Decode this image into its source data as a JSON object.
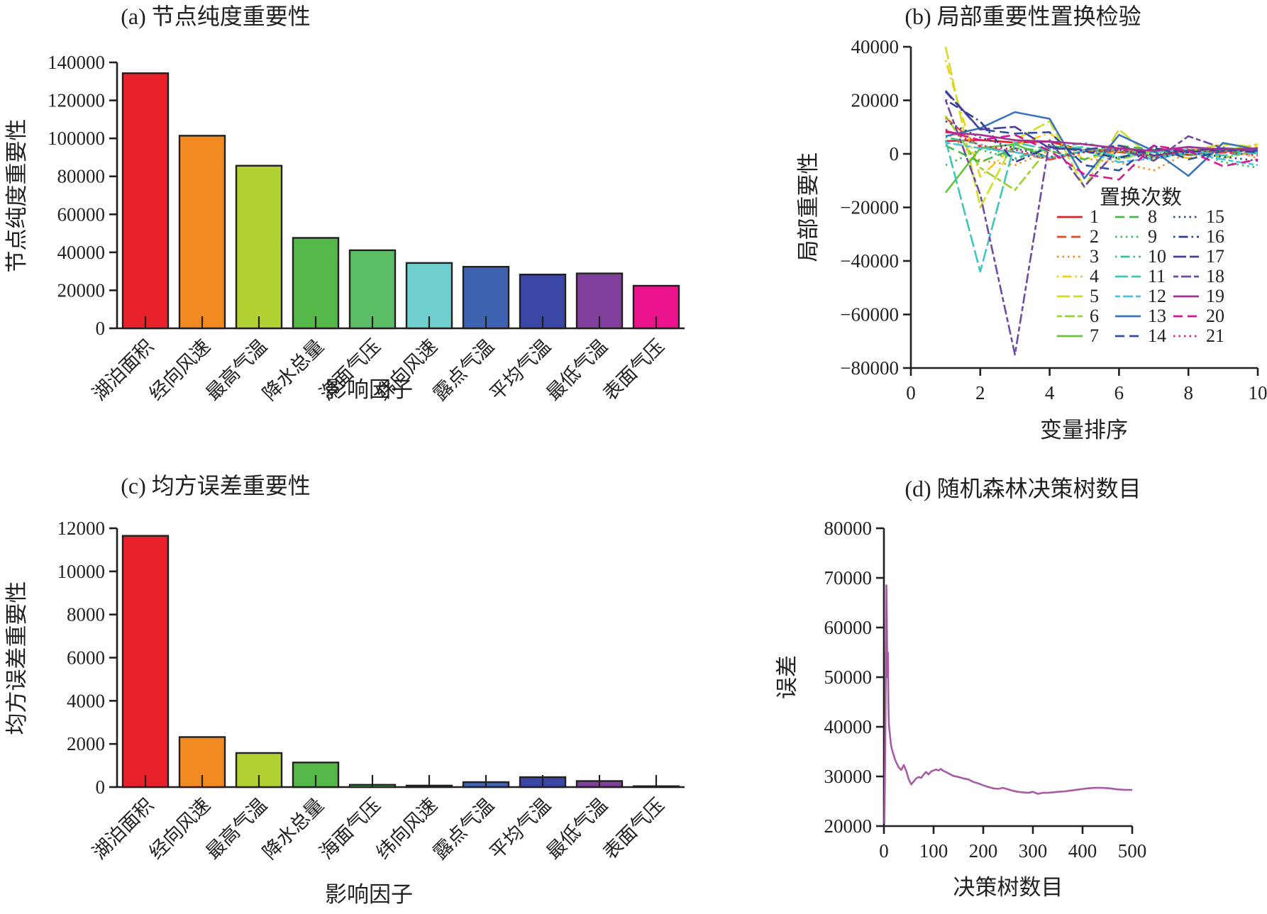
{
  "ink": "#231f20",
  "chart_data": [
    {
      "id": "a",
      "type": "bar",
      "title": "(a) 节点纯度重要性",
      "xlabel": "影响因子",
      "ylabel": "节点纯度重要性",
      "categories": [
        "湖泊面积",
        "经向风速",
        "最高气温",
        "降水总量",
        "海面气压",
        "纬向风速",
        "露点气温",
        "平均气温",
        "最低气温",
        "表面气压"
      ],
      "values": [
        134300,
        101400,
        85600,
        47600,
        41100,
        34400,
        32400,
        28300,
        28900,
        22400
      ],
      "bar_colors": [
        "#e8212a",
        "#f18a21",
        "#b2d233",
        "#53b848",
        "#5cbf68",
        "#6fcfcd",
        "#3f63b0",
        "#3a47a5",
        "#7f3f9b",
        "#eb148c"
      ],
      "ylim": [
        0,
        140000
      ],
      "ytick_step": 20000,
      "grid": false
    },
    {
      "id": "b",
      "type": "line",
      "title": "(b) 局部重要性置换检验",
      "xlabel": "变量排序",
      "ylabel": "局部重要性",
      "xlim": [
        0,
        10
      ],
      "xtick_step": 2,
      "ylim": [
        -80000,
        40000
      ],
      "ytick_step": 20000,
      "grid": false,
      "x": [
        1,
        2,
        3,
        4,
        5,
        6,
        7,
        8,
        9,
        10
      ],
      "legend": {
        "title": "置换次数",
        "position": "inside-right"
      },
      "series": [
        {
          "label": "1",
          "color": "#e32026",
          "dash": "solid",
          "values": [
            4800,
            5200,
            4200,
            4600,
            1200,
            800,
            1500,
            -400,
            900,
            1400
          ]
        },
        {
          "label": "2",
          "color": "#ee4823",
          "dash": "dashed",
          "values": [
            13500,
            2500,
            800,
            -2200,
            1200,
            600,
            -700,
            1100,
            400,
            100
          ]
        },
        {
          "label": "3",
          "color": "#f58b1f",
          "dash": "dotted",
          "values": [
            8200,
            -2500,
            -4200,
            1200,
            -1800,
            -3200,
            -6200,
            600,
            2600,
            -1700
          ]
        },
        {
          "label": "4",
          "color": "#f4cc13",
          "dash": "dotdash",
          "values": [
            35000,
            -8500,
            3200,
            7800,
            -2200,
            1100,
            600,
            -1600,
            1100,
            3600
          ]
        },
        {
          "label": "5",
          "color": "#cede26",
          "dash": "longdash",
          "values": [
            40000,
            -20000,
            5200,
            12200,
            -12500,
            9200,
            -2100,
            1100,
            3600,
            2600
          ]
        },
        {
          "label": "6",
          "color": "#9ad32f",
          "dash": "twodash",
          "values": [
            14200,
            -5200,
            -13500,
            2600,
            1600,
            -2100,
            1100,
            2600,
            -1600,
            1100
          ]
        },
        {
          "label": "7",
          "color": "#65c33c",
          "dash": "solid",
          "values": [
            -14500,
            2100,
            3600,
            -1600,
            1100,
            2100,
            -1100,
            600,
            2100,
            1600
          ]
        },
        {
          "label": "8",
          "color": "#44bb47",
          "dash": "dashed",
          "values": [
            3100,
            -3100,
            2100,
            1100,
            -2100,
            3100,
            1600,
            -600,
            1100,
            600
          ]
        },
        {
          "label": "9",
          "color": "#3abd5e",
          "dash": "dotted",
          "values": [
            -4200,
            1600,
            -2100,
            3100,
            1100,
            -1600,
            600,
            2100,
            -3100,
            -5200
          ]
        },
        {
          "label": "10",
          "color": "#3ac08d",
          "dash": "dotdash",
          "values": [
            6200,
            3600,
            -1600,
            2100,
            4100,
            1100,
            -2100,
            600,
            1600,
            100
          ]
        },
        {
          "label": "11",
          "color": "#40c5bb",
          "dash": "longdash",
          "values": [
            5200,
            -44000,
            4200,
            1600,
            2600,
            -1100,
            600,
            1600,
            -600,
            600
          ]
        },
        {
          "label": "12",
          "color": "#48c2e0",
          "dash": "twodash",
          "values": [
            4200,
            2100,
            600,
            -1600,
            1100,
            -3100,
            -1600,
            600,
            -2100,
            -4200
          ]
        },
        {
          "label": "13",
          "color": "#3a74be",
          "dash": "solid",
          "values": [
            6600,
            9600,
            15600,
            13100,
            -9200,
            7100,
            1100,
            -8200,
            4100,
            1600
          ]
        },
        {
          "label": "14",
          "color": "#2f4fa8",
          "dash": "dashed",
          "values": [
            23200,
            9100,
            7600,
            8100,
            -4200,
            -6200,
            3100,
            -2100,
            1100,
            2100
          ]
        },
        {
          "label": "15",
          "color": "#37479f",
          "dash": "dotted",
          "values": [
            12200,
            6100,
            2100,
            -1100,
            600,
            1600,
            -1600,
            600,
            -1100,
            -2600
          ]
        },
        {
          "label": "16",
          "color": "#2f3d95",
          "dash": "dotdash",
          "values": [
            20200,
            12100,
            -3100,
            2600,
            1100,
            -1600,
            2100,
            600,
            1600,
            600
          ]
        },
        {
          "label": "17",
          "color": "#4a3e9b",
          "dash": "longdash",
          "values": [
            23600,
            9100,
            10100,
            2100,
            1600,
            3100,
            -600,
            1100,
            2100,
            1100
          ]
        },
        {
          "label": "18",
          "color": "#6f4aa4",
          "dash": "twodash",
          "values": [
            20100,
            -15200,
            -75000,
            5100,
            -12200,
            2100,
            -2600,
            6600,
            2100,
            1100
          ]
        },
        {
          "label": "19",
          "color": "#a23394",
          "dash": "solid",
          "values": [
            8100,
            7100,
            5100,
            4600,
            3600,
            2100,
            1100,
            2600,
            1600,
            2100
          ]
        },
        {
          "label": "20",
          "color": "#d81690",
          "dash": "dashed",
          "values": [
            8600,
            5100,
            7100,
            1100,
            -7600,
            -9600,
            3100,
            1100,
            -4600,
            -2100
          ]
        },
        {
          "label": "21",
          "color": "#e8255e",
          "dash": "dotted",
          "values": [
            9100,
            3100,
            1600,
            -2100,
            600,
            2100,
            -1100,
            1600,
            600,
            -600
          ]
        }
      ]
    },
    {
      "id": "c",
      "type": "bar",
      "title": "(c) 均方误差重要性",
      "xlabel": "影响因子",
      "ylabel": "均方误差重要性",
      "categories": [
        "湖泊面积",
        "经向风速",
        "最高气温",
        "降水总量",
        "海面气压",
        "纬向风速",
        "露点气温",
        "平均气温",
        "最低气温",
        "表面气压"
      ],
      "values": [
        11650,
        2320,
        1580,
        1140,
        105,
        70,
        230,
        460,
        280,
        40
      ],
      "bar_colors": [
        "#e8212a",
        "#f18a21",
        "#b2d233",
        "#53b848",
        "#5cbf68",
        "#6fcfcd",
        "#3f63b0",
        "#3a47a5",
        "#7f3f9b",
        "#eb148c"
      ],
      "ylim": [
        0,
        12000
      ],
      "ytick_step": 2000,
      "grid": false
    },
    {
      "id": "d",
      "type": "line",
      "title": "(d) 随机森林决策树数目",
      "xlabel": "决策树数目",
      "ylabel": "误差",
      "xlim": [
        0,
        500
      ],
      "xtick_step": 100,
      "ylim": [
        20000,
        80000
      ],
      "ytick_step": 10000,
      "grid": false,
      "legend": null,
      "series": [
        {
          "label": "误差",
          "color": "#a75ba4",
          "dash": "solid",
          "x": [
            1,
            2,
            3,
            4,
            5,
            6,
            7,
            8,
            9,
            10,
            12,
            14,
            16,
            18,
            20,
            22,
            25,
            28,
            30,
            35,
            40,
            45,
            50,
            55,
            60,
            65,
            70,
            75,
            80,
            85,
            90,
            95,
            100,
            105,
            110,
            115,
            120,
            125,
            130,
            140,
            150,
            160,
            170,
            180,
            190,
            200,
            210,
            220,
            230,
            240,
            250,
            260,
            270,
            280,
            290,
            300,
            310,
            320,
            330,
            340,
            350,
            365,
            380,
            395,
            410,
            425,
            440,
            455,
            470,
            485,
            500
          ],
          "values": [
            20500,
            30000,
            40000,
            52000,
            68500,
            60000,
            50000,
            55000,
            45000,
            40500,
            38500,
            36500,
            35500,
            34800,
            34200,
            33500,
            32800,
            32200,
            31800,
            31300,
            32300,
            31100,
            29400,
            28400,
            29000,
            29600,
            29900,
            29700,
            30400,
            30900,
            30400,
            31000,
            31200,
            31400,
            31200,
            31500,
            31100,
            30900,
            30600,
            30100,
            29900,
            29600,
            29400,
            28900,
            28600,
            28200,
            27900,
            27600,
            27500,
            27700,
            27400,
            27100,
            26900,
            26800,
            26700,
            26900,
            26500,
            26700,
            26700,
            26800,
            26900,
            27000,
            27200,
            27400,
            27600,
            27700,
            27700,
            27600,
            27400,
            27300,
            27300
          ]
        }
      ]
    }
  ]
}
